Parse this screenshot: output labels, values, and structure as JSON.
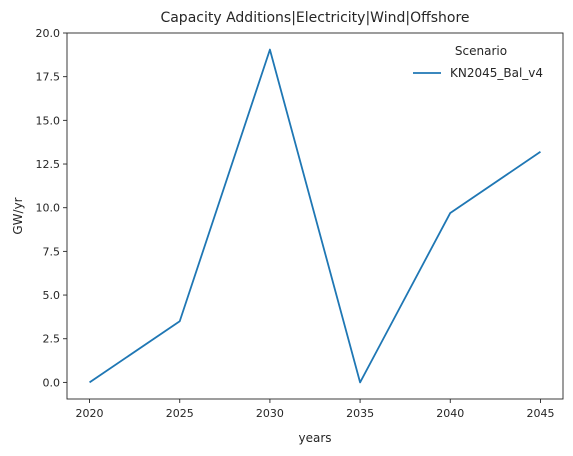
{
  "chart_data": {
    "type": "line",
    "title": "Capacity Additions|Electricity|Wind|Offshore",
    "xlabel": "years",
    "ylabel": "GW/yr",
    "x": [
      2020,
      2025,
      2030,
      2035,
      2040,
      2045
    ],
    "xticks": [
      "2020",
      "2025",
      "2030",
      "2035",
      "2040",
      "2045"
    ],
    "yticks": [
      "0.0",
      "2.5",
      "5.0",
      "7.5",
      "10.0",
      "12.5",
      "15.0",
      "17.5",
      "20.0"
    ],
    "xlim": [
      2018.75,
      2046.25
    ],
    "ylim": [
      -0.95,
      20.0
    ],
    "grid": false,
    "legend": {
      "title": "Scenario",
      "placement": "top-right"
    },
    "series": [
      {
        "name": "KN2045_Bal_v4",
        "color": "#1f77b4",
        "values": [
          0.0,
          3.5,
          19.05,
          0.0,
          9.7,
          13.2
        ]
      }
    ]
  }
}
